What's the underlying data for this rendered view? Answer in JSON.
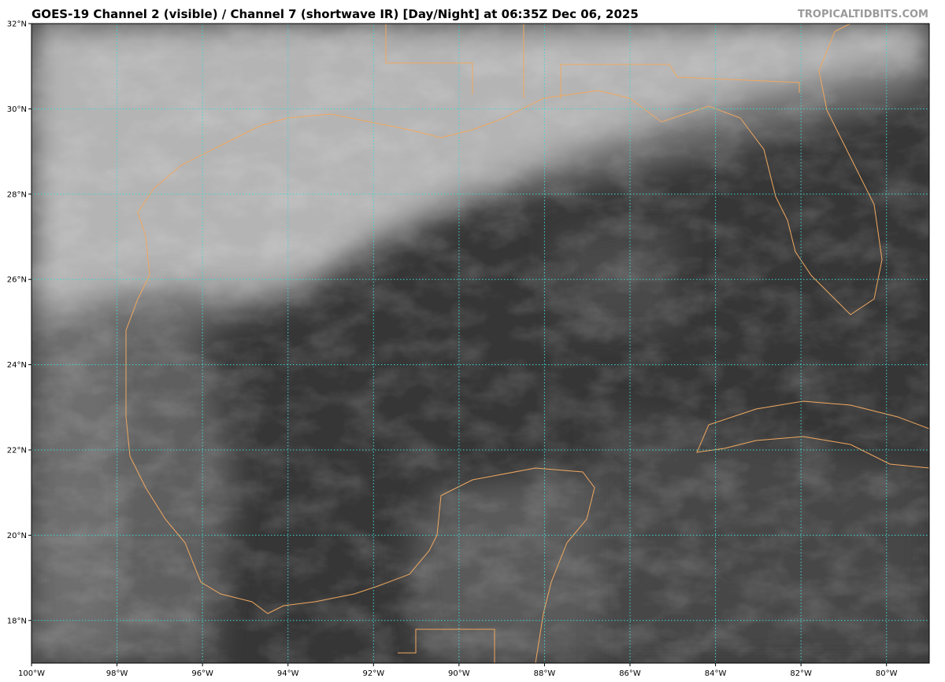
{
  "header": {
    "title": "GOES-19 Channel 2 (visible) / Channel 7 (shortwave IR) [Day/Night] at 06:35Z Dec 06, 2025",
    "credit": "TROPICALTIDBITS.COM"
  },
  "map": {
    "type": "satellite-imagery",
    "extent": {
      "lon": [
        -100,
        -79
      ],
      "lat": [
        17,
        32
      ]
    },
    "lon_ticks": [
      {
        "value": -100,
        "label": "100°W"
      },
      {
        "value": -98,
        "label": "98°W"
      },
      {
        "value": -96,
        "label": "96°W"
      },
      {
        "value": -94,
        "label": "94°W"
      },
      {
        "value": -92,
        "label": "92°W"
      },
      {
        "value": -90,
        "label": "90°W"
      },
      {
        "value": -88,
        "label": "88°W"
      },
      {
        "value": -86,
        "label": "86°W"
      },
      {
        "value": -84,
        "label": "84°W"
      },
      {
        "value": -82,
        "label": "82°W"
      },
      {
        "value": -80,
        "label": "80°W"
      }
    ],
    "lat_ticks": [
      {
        "value": 32,
        "label": "32°N"
      },
      {
        "value": 30,
        "label": "30°N"
      },
      {
        "value": 28,
        "label": "28°N"
      },
      {
        "value": 26,
        "label": "26°N"
      },
      {
        "value": 24,
        "label": "24°N"
      },
      {
        "value": 22,
        "label": "22°N"
      },
      {
        "value": 20,
        "label": "20°N"
      },
      {
        "value": 18,
        "label": "18°N"
      }
    ],
    "colors": {
      "grid": "#3fd6d0",
      "coastline": "#f0a860",
      "frame": "#000000"
    }
  }
}
